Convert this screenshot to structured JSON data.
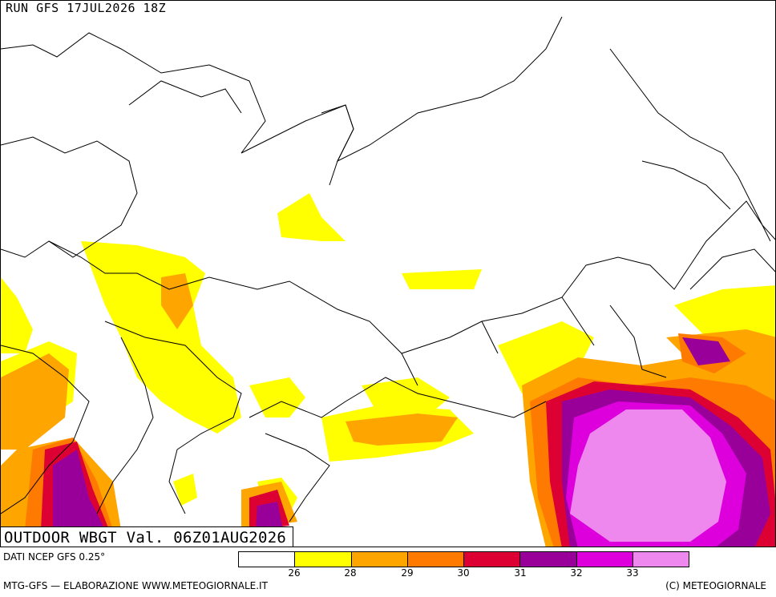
{
  "header": {
    "run_label": "RUN GFS 17JUL2026 18Z"
  },
  "map": {
    "title": "OUTDOOR WBGT Val. 06Z01AUG2026",
    "region": "Europe / Asia",
    "colors": {
      "c26": "#ffff00",
      "c28": "#ffa500",
      "c29": "#ff7a00",
      "c30": "#dd0033",
      "c31": "#990099",
      "c32": "#dd00dd",
      "c33": "#ee88ee"
    }
  },
  "legend": {
    "colors": [
      "#ffffff",
      "#ffff00",
      "#ffa500",
      "#ff7a00",
      "#dd0033",
      "#990099",
      "#dd00dd",
      "#ee88ee"
    ],
    "ticks": [
      "26",
      "28",
      "29",
      "30",
      "31",
      "32",
      "33"
    ]
  },
  "footer": {
    "source": "DATI NCEP GFS 0.25°",
    "credit": "MTG-GFS — ELABORAZIONE WWW.METEOGIORNALE.IT",
    "copyright": "(C) METEOGIORNALE"
  }
}
